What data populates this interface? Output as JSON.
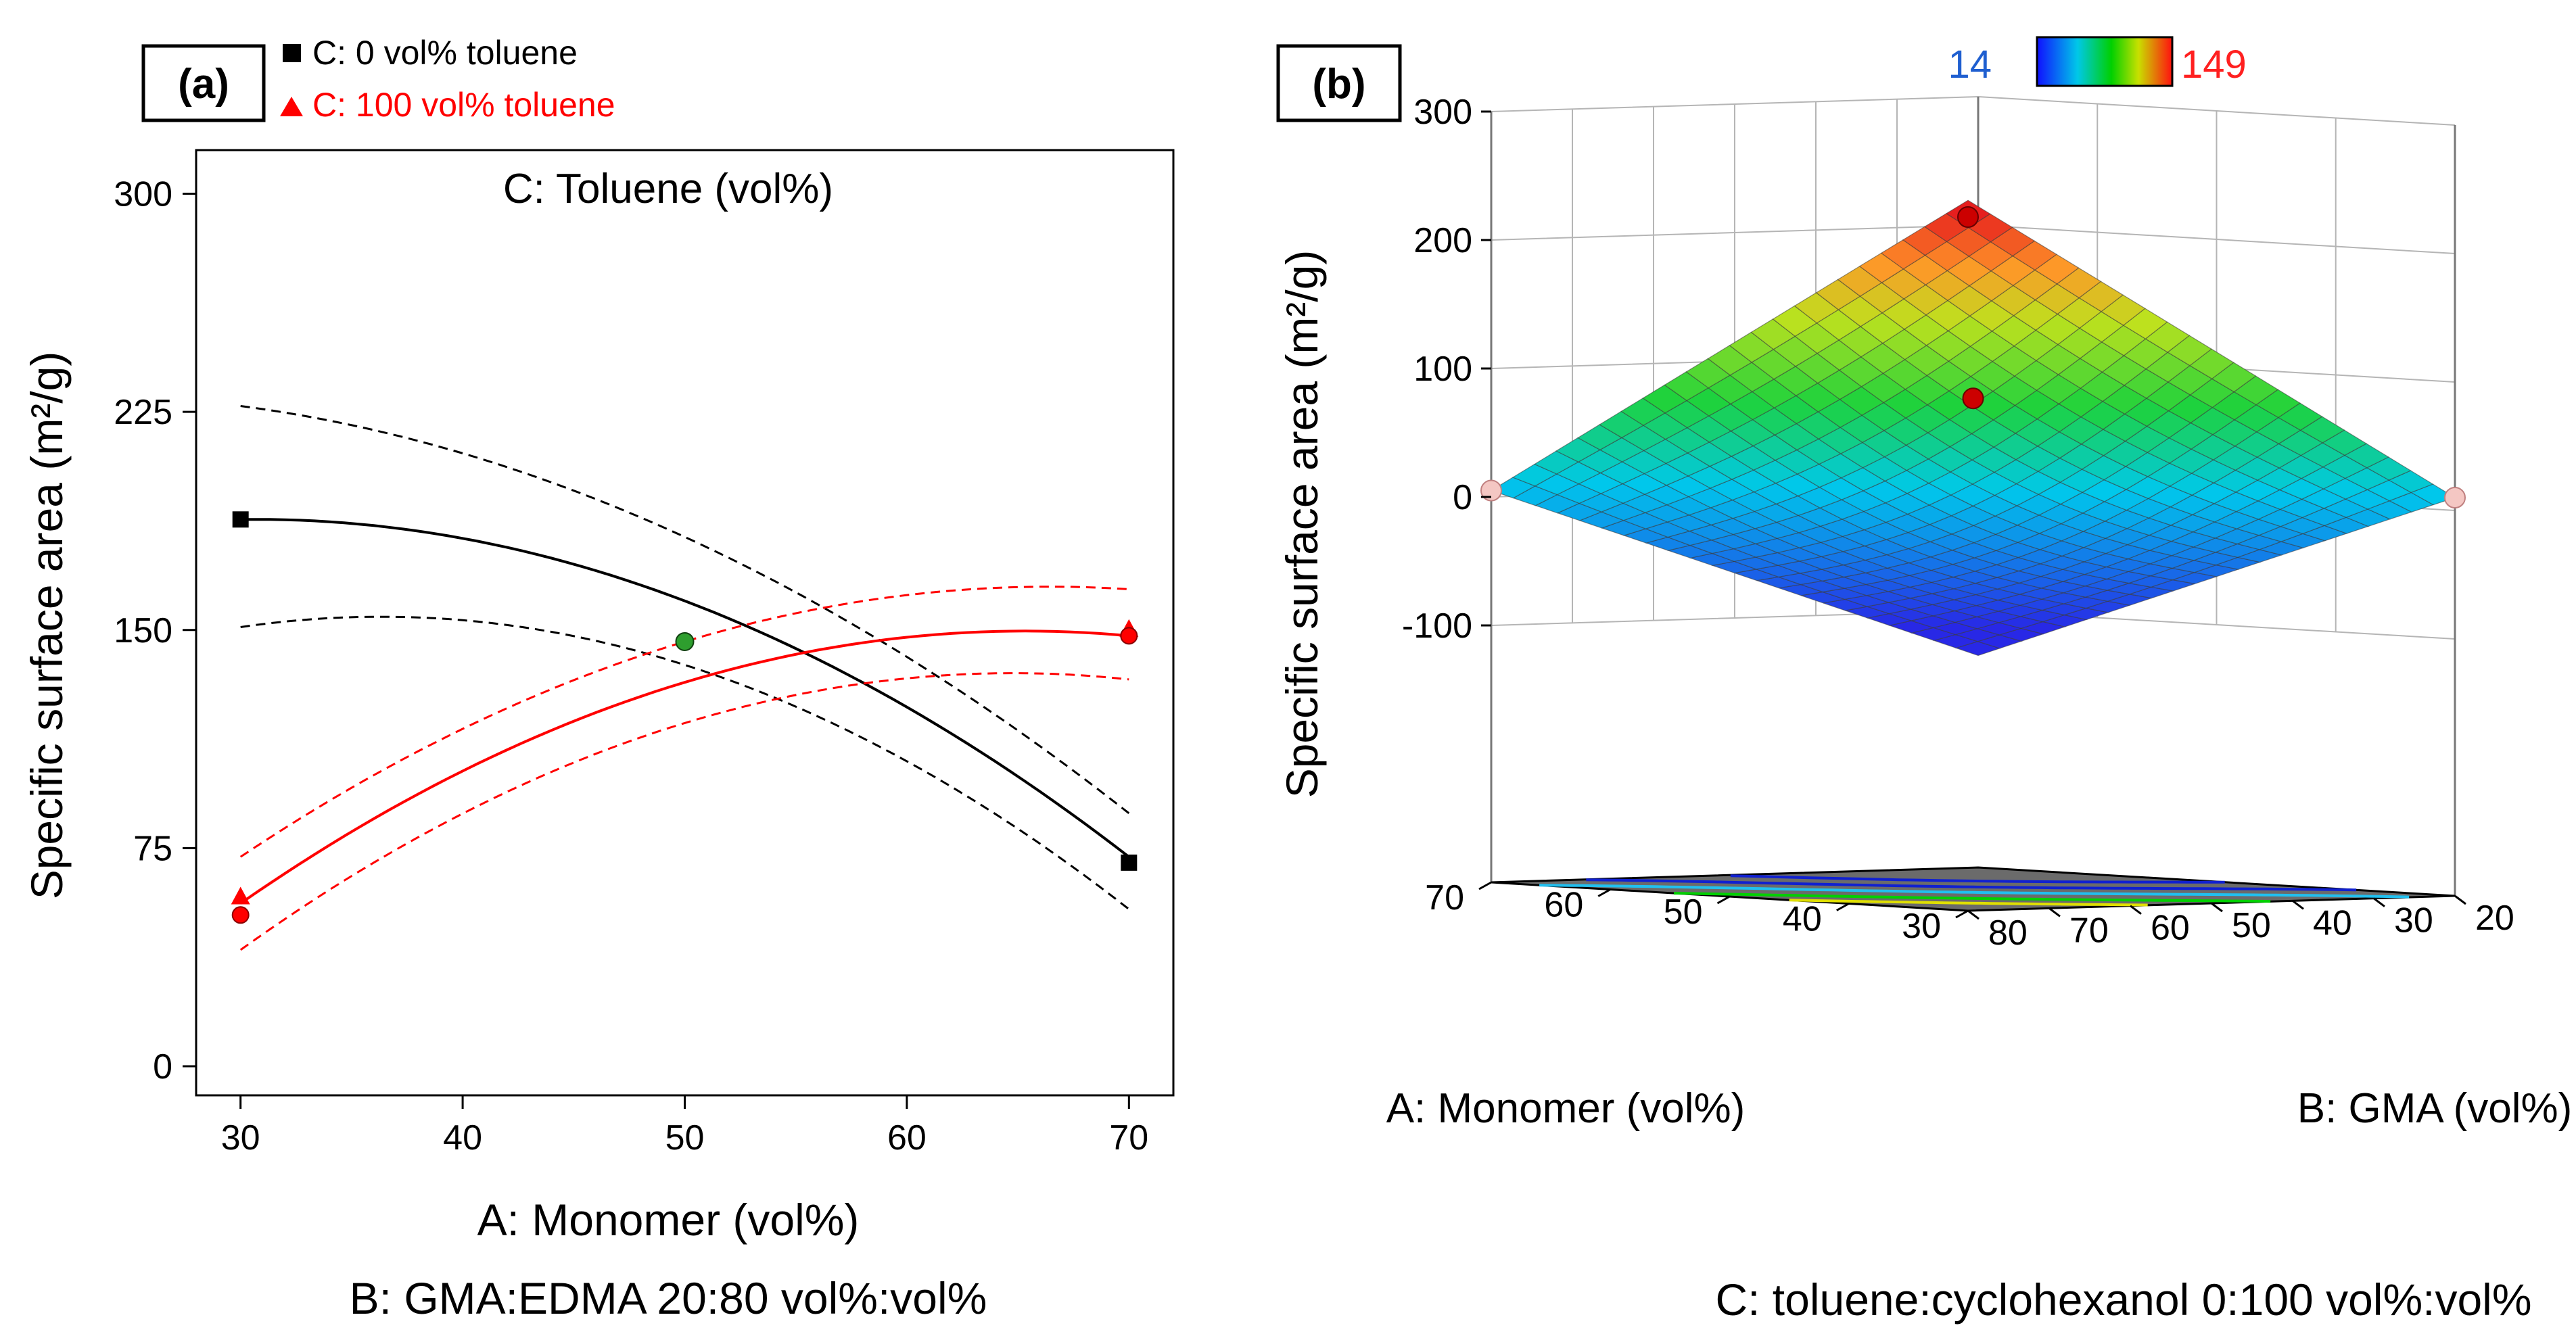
{
  "panel_a": {
    "label": "(a)",
    "legend": [
      {
        "symbol": "square",
        "text": "C: 0 vol% toluene",
        "color": "#000000"
      },
      {
        "symbol": "triangle",
        "text": "C: 100 vol% toluene",
        "color": "#ff0000"
      }
    ],
    "footer": "B: GMA:EDMA 20:80 vol%:vol%"
  },
  "panel_b": {
    "label": "(b)",
    "colorbar": {
      "min_label": "14",
      "max_label": "149",
      "min_color": "#1f5fd0",
      "max_color": "#ff2020"
    },
    "zlabel": "Specific surface area (m²/g)",
    "z_ticks": [
      "300",
      "200",
      "100",
      "0",
      "-100"
    ],
    "a_label": "A: Monomer (vol%)",
    "a_ticks": [
      "70",
      "60",
      "50",
      "40",
      "30"
    ],
    "b_label": "B: GMA (vol%)",
    "b_ticks": [
      "20",
      "30",
      "40",
      "50",
      "60",
      "70",
      "80"
    ],
    "footer": "C: toluene:cyclohexanol 0:100 vol%:vol%",
    "colors": {
      "floor": "#6b6b6b",
      "grid": "#b5b5b5",
      "point": "#cc0000",
      "point_light": "#f4c7c3"
    }
  },
  "chart_data": [
    {
      "type": "line",
      "title": "C: Toluene (vol%)",
      "xlabel": "A: Monomer (vol%)",
      "ylabel": "Specific surface area (m²/g)",
      "xlim": [
        28,
        72
      ],
      "ylim": [
        -10,
        315
      ],
      "x_ticks": [
        30,
        40,
        50,
        60,
        70
      ],
      "y_ticks": [
        0,
        75,
        150,
        225,
        300
      ],
      "series": [
        {
          "name": "C: 0 vol% toluene",
          "color": "#000000",
          "marker": "square",
          "x": [
            30,
            40,
            50,
            60,
            70
          ],
          "values": [
            188,
            181,
            160,
            124,
            72
          ],
          "ci_lower": [
            151,
            150,
            138,
            101,
            54
          ],
          "ci_upper": [
            227,
            212,
            182,
            148,
            87
          ],
          "points": [
            {
              "x": 30,
              "y": 188
            },
            {
              "x": 70,
              "y": 70
            }
          ]
        },
        {
          "name": "C: 100 vol% toluene",
          "color": "#ff0000",
          "marker": "triangle",
          "x": [
            30,
            40,
            50,
            60,
            70
          ],
          "values": [
            56,
            103,
            132,
            146,
            148
          ],
          "ci_lower": [
            40,
            89,
            118,
            131,
            133
          ],
          "ci_upper": [
            72,
            118,
            146,
            160,
            164
          ],
          "points": [
            {
              "x": 30,
              "y": 52
            },
            {
              "x": 70,
              "y": 148
            }
          ]
        }
      ],
      "center_point": {
        "x": 50,
        "y": 146,
        "color": "#2e9e2e"
      }
    },
    {
      "type": "surface",
      "title": "",
      "xlabel": "B: GMA (vol%)",
      "ylabel": "A: Monomer (vol%)",
      "zlabel": "Specific surface area (m²/g)",
      "x_range": [
        20,
        80
      ],
      "y_range": [
        30,
        70
      ],
      "zlim": [
        -100,
        300
      ],
      "corner_values": {
        "B20_A30": 10,
        "B80_A30": 253,
        "B20_A70": -135,
        "B80_A70": 5
      },
      "design_points": [
        {
          "B": 80,
          "A": 30,
          "z": 240
        },
        {
          "B": 50,
          "A": 50,
          "z": 82
        },
        {
          "B": 20,
          "A": 30,
          "z": 10
        },
        {
          "B": 80,
          "A": 70,
          "z": 5
        }
      ],
      "color_range": [
        14,
        149
      ]
    }
  ]
}
